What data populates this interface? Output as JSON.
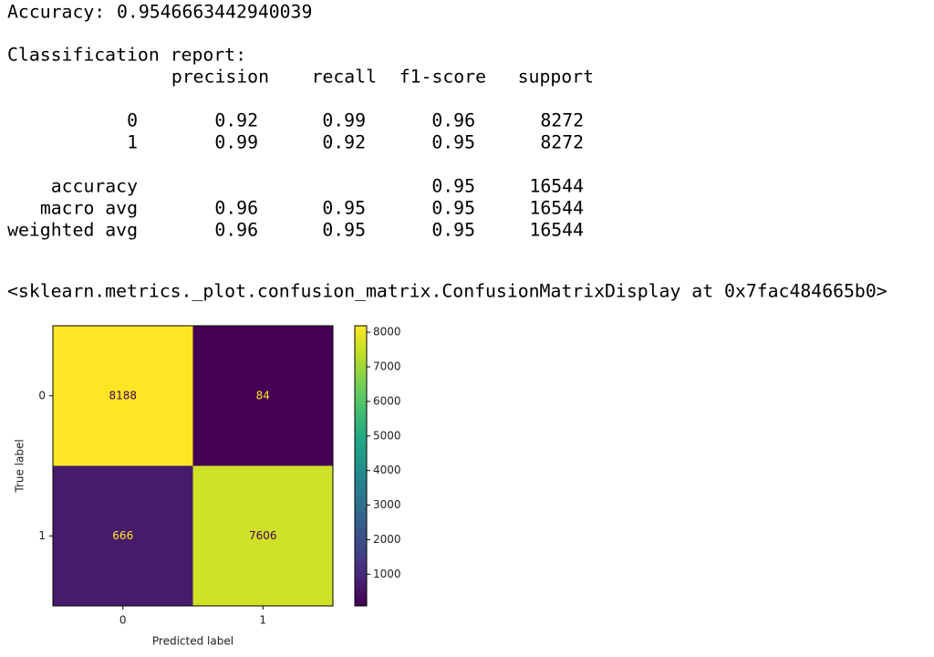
{
  "output": {
    "accuracy": {
      "label": "Accuracy:",
      "value": 0.9546663442940039
    },
    "report": {
      "title": "Classification report:",
      "columns": [
        "precision",
        "recall",
        "f1-score",
        "support"
      ],
      "rows": [
        {
          "label": "0",
          "cells": [
            0.92,
            0.99,
            0.96,
            8272
          ]
        },
        {
          "label": "1",
          "cells": [
            0.99,
            0.92,
            0.95,
            8272
          ]
        },
        {
          "label": "accuracy",
          "cells": [
            null,
            null,
            0.95,
            16544
          ]
        },
        {
          "label": "macro avg",
          "cells": [
            0.96,
            0.95,
            0.95,
            16544
          ]
        },
        {
          "label": "weighted avg",
          "cells": [
            0.96,
            0.95,
            0.95,
            16544
          ]
        }
      ]
    },
    "repr": "<sklearn.metrics._plot.confusion_matrix.ConfusionMatrixDisplay at 0x7fac484665b0>"
  },
  "chart_data": {
    "type": "heatmap",
    "x_categories": [
      "0",
      "1"
    ],
    "y_categories": [
      "0",
      "1"
    ],
    "values": [
      [
        8188,
        84
      ],
      [
        666,
        7606
      ]
    ],
    "xlabel": "Predicted label",
    "ylabel": "True label",
    "colormap": "viridis",
    "clim": [
      84,
      8188
    ],
    "cticks": [
      1000,
      2000,
      3000,
      4000,
      5000,
      6000,
      7000,
      8000
    ]
  }
}
